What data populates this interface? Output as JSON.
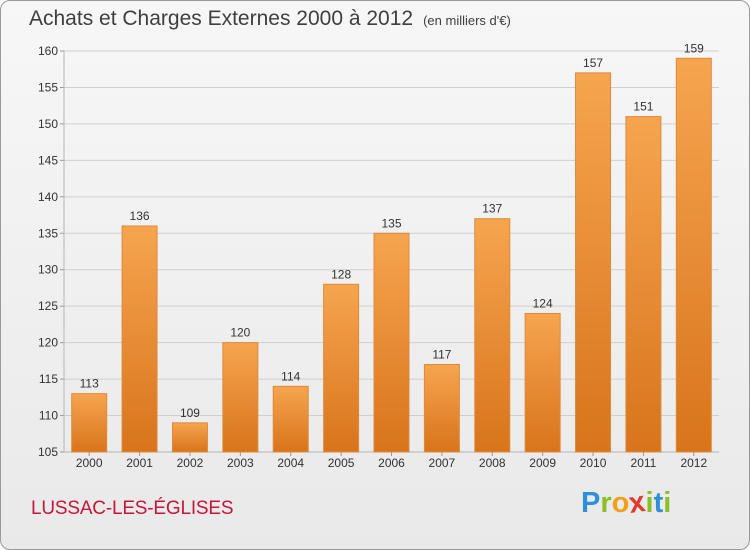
{
  "title": "Achats et Charges Externes 2000 à 2012",
  "unit": "(en milliers d'€)",
  "city": "LUSSAC-LES-ÉGLISES",
  "logo": {
    "letters": [
      "P",
      "r",
      "o",
      "x",
      "i",
      "t",
      "i"
    ],
    "colors": [
      "#2f8fd8",
      "#8cbf26",
      "#f2a018",
      "#e23a2a",
      "#8cbf26",
      "#2f8fd8",
      "#8cbf26"
    ]
  },
  "colors": {
    "bar_top": "#f6a54f",
    "bar_bottom": "#d8741c",
    "grid": "#cfcfcf",
    "axis_text": "#333333"
  },
  "chart_data": {
    "type": "bar",
    "categories": [
      "2000",
      "2001",
      "2002",
      "2003",
      "2004",
      "2005",
      "2006",
      "2007",
      "2008",
      "2009",
      "2010",
      "2011",
      "2012"
    ],
    "values": [
      113,
      136,
      109,
      120,
      114,
      128,
      135,
      117,
      137,
      124,
      157,
      151,
      159
    ],
    "ylim": [
      105,
      160
    ],
    "yticks": [
      105,
      110,
      115,
      120,
      125,
      130,
      135,
      140,
      145,
      150,
      155,
      160
    ],
    "grid": true,
    "title": "Achats et Charges Externes 2000 à 2012",
    "subtitle": "(en milliers d'€)"
  }
}
